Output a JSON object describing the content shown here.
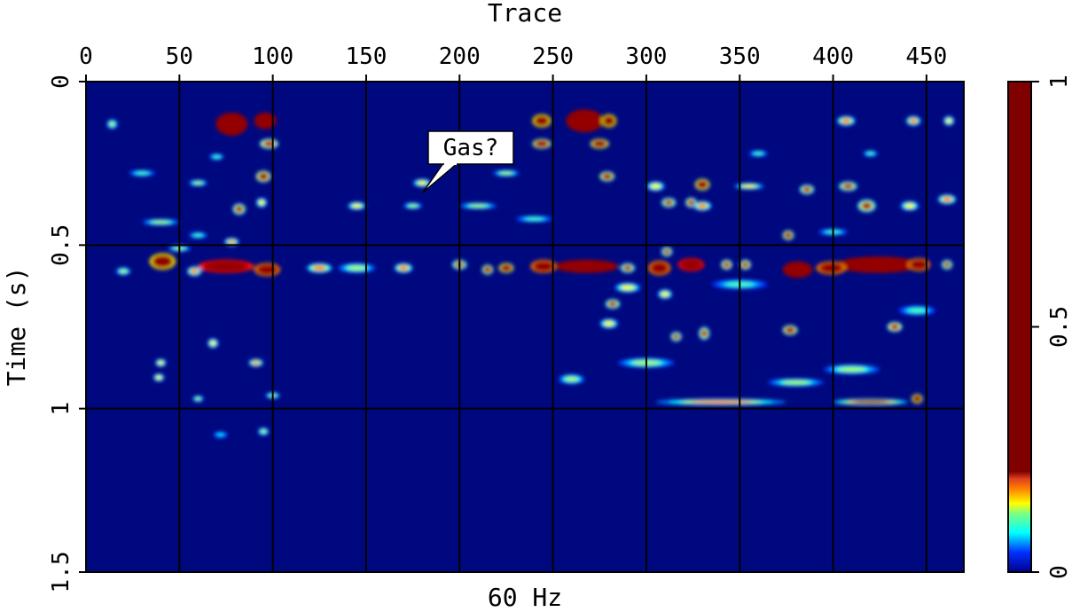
{
  "chart_data": {
    "type": "heatmap",
    "title": "Trace",
    "xlabel": "Trace",
    "ylabel": "Time (s)",
    "caption": "60 Hz",
    "xlim": [
      0,
      470
    ],
    "ylim": [
      0,
      1.5
    ],
    "xticks": [
      "0",
      "50",
      "100",
      "150",
      "200",
      "250",
      "300",
      "350",
      "400",
      "450"
    ],
    "xtick_values": [
      0,
      50,
      100,
      150,
      200,
      250,
      300,
      350,
      400,
      450
    ],
    "yticks": [
      "0",
      "0.5",
      "1",
      "1.5"
    ],
    "ytick_values": [
      0,
      0.5,
      1,
      1.5
    ],
    "grid": true,
    "colorbar": {
      "range": [
        0,
        1
      ],
      "ticks": [
        "0",
        "0.5",
        "1"
      ],
      "tick_values": [
        0,
        0.5,
        1
      ],
      "saturation": 0.2,
      "colormap": "jet",
      "placement": "right"
    },
    "annotation": {
      "text": "Gas?",
      "trace": 180,
      "time": 0.34
    },
    "background_color": "#00087f",
    "blobs_format": [
      "trace",
      "time",
      "amplitude",
      "width_traces",
      "height_s"
    ],
    "blobs": [
      [
        78,
        0.13,
        0.9,
        17,
        0.07
      ],
      [
        96,
        0.12,
        0.8,
        12,
        0.05
      ],
      [
        98,
        0.19,
        0.25,
        10,
        0.03
      ],
      [
        95,
        0.29,
        0.3,
        8,
        0.035
      ],
      [
        14,
        0.13,
        0.1,
        6,
        0.03
      ],
      [
        82,
        0.39,
        0.22,
        7,
        0.035
      ],
      [
        94,
        0.37,
        0.12,
        6,
        0.03
      ],
      [
        78,
        0.49,
        0.14,
        8,
        0.025
      ],
      [
        41,
        0.55,
        0.5,
        14,
        0.05
      ],
      [
        75,
        0.565,
        0.7,
        30,
        0.04
      ],
      [
        97,
        0.575,
        0.6,
        14,
        0.04
      ],
      [
        58,
        0.58,
        0.15,
        8,
        0.03
      ],
      [
        215,
        0.575,
        0.3,
        6,
        0.03
      ],
      [
        225,
        0.57,
        0.4,
        8,
        0.03
      ],
      [
        245,
        0.565,
        0.6,
        14,
        0.04
      ],
      [
        268,
        0.565,
        0.8,
        34,
        0.04
      ],
      [
        290,
        0.57,
        0.2,
        8,
        0.03
      ],
      [
        307,
        0.57,
        0.6,
        12,
        0.045
      ],
      [
        324,
        0.56,
        0.7,
        14,
        0.04
      ],
      [
        343,
        0.56,
        0.25,
        6,
        0.03
      ],
      [
        353,
        0.56,
        0.25,
        6,
        0.03
      ],
      [
        381,
        0.575,
        0.8,
        16,
        0.05
      ],
      [
        424,
        0.56,
        0.9,
        44,
        0.05
      ],
      [
        446,
        0.56,
        0.6,
        12,
        0.04
      ],
      [
        461,
        0.56,
        0.2,
        6,
        0.03
      ],
      [
        399,
        0.57,
        0.6,
        16,
        0.04
      ],
      [
        311,
        0.52,
        0.2,
        6,
        0.03
      ],
      [
        244,
        0.12,
        0.5,
        10,
        0.04
      ],
      [
        267,
        0.12,
        0.9,
        20,
        0.07
      ],
      [
        280,
        0.12,
        0.5,
        8,
        0.04
      ],
      [
        244,
        0.19,
        0.35,
        10,
        0.03
      ],
      [
        275,
        0.19,
        0.4,
        10,
        0.03
      ],
      [
        279,
        0.29,
        0.3,
        8,
        0.03
      ],
      [
        330,
        0.315,
        0.4,
        8,
        0.035
      ],
      [
        312,
        0.37,
        0.2,
        8,
        0.03
      ],
      [
        324,
        0.37,
        0.25,
        6,
        0.03
      ],
      [
        305,
        0.32,
        0.12,
        10,
        0.03
      ],
      [
        386,
        0.33,
        0.2,
        8,
        0.03
      ],
      [
        376,
        0.47,
        0.3,
        6,
        0.03
      ],
      [
        377,
        0.76,
        0.3,
        8,
        0.03
      ],
      [
        445,
        0.97,
        0.4,
        6,
        0.03
      ],
      [
        433,
        0.75,
        0.25,
        8,
        0.03
      ],
      [
        316,
        0.78,
        0.2,
        6,
        0.03
      ],
      [
        331,
        0.77,
        0.2,
        6,
        0.04
      ],
      [
        68,
        0.8,
        0.12,
        6,
        0.03
      ],
      [
        91,
        0.86,
        0.14,
        8,
        0.025
      ],
      [
        40,
        0.86,
        0.12,
        6,
        0.025
      ],
      [
        39,
        0.905,
        0.12,
        6,
        0.025
      ],
      [
        282,
        0.68,
        0.2,
        8,
        0.03
      ],
      [
        407,
        0.12,
        0.15,
        10,
        0.03
      ],
      [
        443,
        0.12,
        0.15,
        8,
        0.03
      ],
      [
        462,
        0.12,
        0.12,
        6,
        0.03
      ],
      [
        408,
        0.32,
        0.2,
        10,
        0.03
      ],
      [
        418,
        0.38,
        0.2,
        10,
        0.04
      ],
      [
        441,
        0.38,
        0.12,
        10,
        0.03
      ],
      [
        461,
        0.36,
        0.15,
        10,
        0.03
      ],
      [
        330,
        0.38,
        0.15,
        10,
        0.03
      ],
      [
        355,
        0.32,
        0.12,
        16,
        0.02
      ],
      [
        180,
        0.31,
        0.12,
        10,
        0.025
      ],
      [
        210,
        0.38,
        0.1,
        20,
        0.02
      ],
      [
        145,
        0.38,
        0.12,
        10,
        0.025
      ],
      [
        175,
        0.38,
        0.1,
        10,
        0.02
      ],
      [
        125,
        0.57,
        0.15,
        14,
        0.03
      ],
      [
        170,
        0.57,
        0.15,
        10,
        0.03
      ],
      [
        145,
        0.57,
        0.1,
        20,
        0.03
      ],
      [
        40,
        0.43,
        0.1,
        20,
        0.02
      ],
      [
        50,
        0.51,
        0.1,
        12,
        0.02
      ],
      [
        20,
        0.58,
        0.1,
        8,
        0.025
      ],
      [
        60,
        0.47,
        0.08,
        10,
        0.02
      ],
      [
        280,
        0.74,
        0.12,
        10,
        0.03
      ],
      [
        300,
        0.86,
        0.1,
        30,
        0.03
      ],
      [
        340,
        0.98,
        0.15,
        70,
        0.02
      ],
      [
        420,
        0.98,
        0.2,
        40,
        0.02
      ],
      [
        410,
        0.88,
        0.1,
        30,
        0.03
      ],
      [
        380,
        0.92,
        0.1,
        30,
        0.025
      ],
      [
        95,
        1.07,
        0.1,
        6,
        0.025
      ],
      [
        72,
        1.08,
        0.06,
        8,
        0.02
      ],
      [
        30,
        0.28,
        0.08,
        14,
        0.02
      ],
      [
        60,
        0.31,
        0.1,
        10,
        0.02
      ],
      [
        70,
        0.23,
        0.08,
        8,
        0.02
      ],
      [
        290,
        0.63,
        0.12,
        14,
        0.03
      ],
      [
        350,
        0.62,
        0.08,
        30,
        0.03
      ],
      [
        445,
        0.7,
        0.08,
        20,
        0.03
      ],
      [
        240,
        0.42,
        0.08,
        20,
        0.02
      ],
      [
        400,
        0.46,
        0.08,
        16,
        0.02
      ],
      [
        100,
        0.96,
        0.1,
        8,
        0.02
      ],
      [
        60,
        0.97,
        0.1,
        6,
        0.02
      ],
      [
        310,
        0.65,
        0.12,
        8,
        0.03
      ],
      [
        260,
        0.91,
        0.1,
        14,
        0.03
      ],
      [
        200,
        0.56,
        0.2,
        8,
        0.03
      ],
      [
        225,
        0.28,
        0.1,
        14,
        0.02
      ],
      [
        360,
        0.22,
        0.08,
        10,
        0.02
      ],
      [
        420,
        0.22,
        0.08,
        8,
        0.02
      ]
    ]
  }
}
